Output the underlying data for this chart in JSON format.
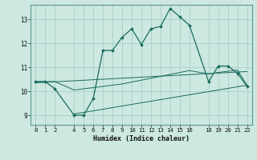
{
  "xlabel": "Humidex (Indice chaleur)",
  "bg_color": "#cce8e0",
  "grid_color": "#a8d0c8",
  "line_color": "#1a6b60",
  "xticks": [
    0,
    1,
    2,
    4,
    5,
    6,
    7,
    8,
    9,
    10,
    11,
    12,
    13,
    14,
    15,
    16,
    18,
    19,
    20,
    21,
    22
  ],
  "yticks": [
    9,
    10,
    11,
    12,
    13
  ],
  "xlim": [
    -0.5,
    22.5
  ],
  "ylim": [
    8.6,
    13.6
  ],
  "line1_x": [
    0,
    1,
    2,
    4,
    5,
    6,
    7,
    8,
    9,
    10,
    11,
    12,
    13,
    14,
    15,
    16,
    18,
    19,
    20,
    21,
    22
  ],
  "line1_y": [
    10.4,
    10.4,
    10.1,
    9.0,
    9.0,
    9.7,
    11.7,
    11.7,
    12.25,
    12.6,
    11.95,
    12.6,
    12.7,
    13.45,
    13.1,
    12.75,
    10.4,
    11.05,
    11.05,
    10.75,
    10.2
  ],
  "line2_x": [
    0,
    2,
    4,
    5,
    6,
    9,
    10,
    11,
    12,
    13,
    14,
    15,
    16,
    18,
    19,
    20,
    21,
    22
  ],
  "line2_y": [
    10.4,
    10.4,
    10.05,
    10.1,
    10.15,
    10.3,
    10.38,
    10.46,
    10.54,
    10.62,
    10.7,
    10.78,
    10.86,
    10.72,
    10.78,
    10.83,
    10.88,
    10.25
  ],
  "line3_x": [
    0,
    22
  ],
  "line3_y": [
    10.35,
    10.82
  ],
  "line4_x": [
    4,
    22
  ],
  "line4_y": [
    9.05,
    10.25
  ]
}
